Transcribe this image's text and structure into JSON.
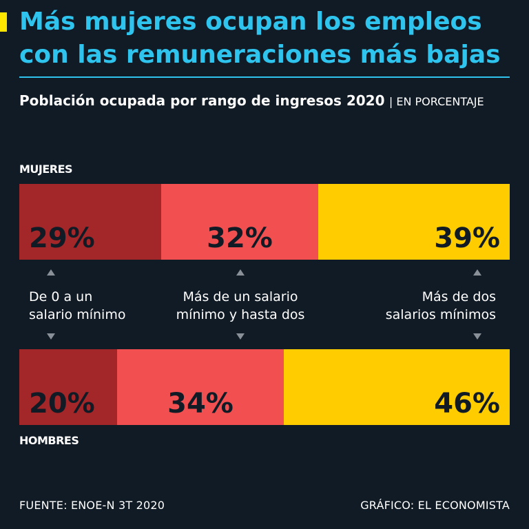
{
  "header": {
    "title": "Más mujeres ocupan los empleos con las remuneraciones más bajas",
    "subtitle": "Población ocupada por rango de ingresos 2020",
    "unit": "| EN PORCENTAJE"
  },
  "colors": {
    "background": "#111b26",
    "accent": "#2fc4ee",
    "tag": "#ffe600",
    "range_low": "#a32628",
    "range_mid": "#f25050",
    "range_high": "#ffcc00"
  },
  "chart_data": {
    "type": "bar",
    "orientation": "horizontal-stacked-100",
    "title": "Población ocupada por rango de ingresos 2020",
    "unit": "porcentaje",
    "categories": [
      "De 0 a un salario mínimo",
      "Más de un salario mínimo y hasta dos",
      "Más de dos salarios mínimos"
    ],
    "category_lines": [
      [
        "De 0 a un",
        "salario mínimo"
      ],
      [
        "Más de un salario",
        "mínimo y hasta dos"
      ],
      [
        "Más de dos",
        "salarios mínimos"
      ]
    ],
    "series": [
      {
        "name": "MUJERES",
        "values": [
          29,
          32,
          39
        ],
        "labels": [
          "29%",
          "32%",
          "39%"
        ]
      },
      {
        "name": "HOMBRES",
        "values": [
          20,
          34,
          46
        ],
        "labels": [
          "20%",
          "34%",
          "46%"
        ]
      }
    ]
  },
  "footer": {
    "source": "FUENTE: ENOE-N 3T 2020",
    "credit": "GRÁFICO: EL ECONOMISTA"
  }
}
